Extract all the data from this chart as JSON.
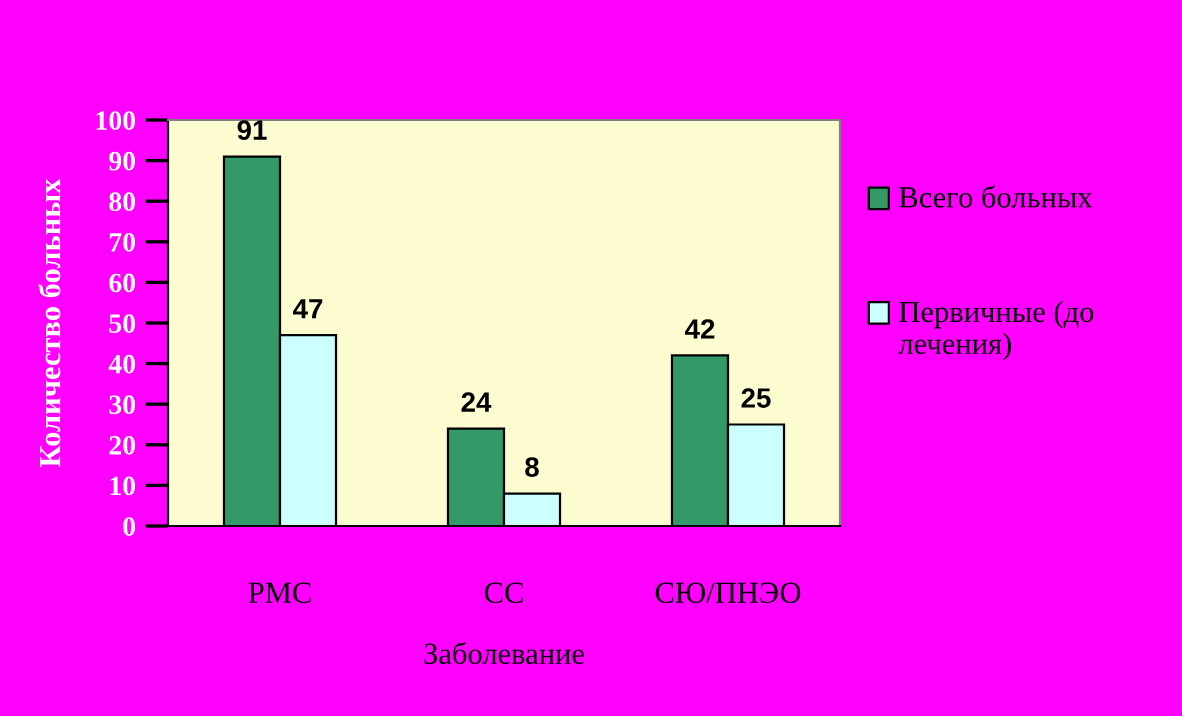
{
  "chart_data": {
    "type": "bar",
    "xlabel": "Заболевание",
    "ylabel": "Количество больных",
    "categories": [
      "РМС",
      "СС",
      "СЮ/ПНЭО"
    ],
    "series": [
      {
        "name": "Всего больных",
        "color": "#339966",
        "values": [
          91,
          24,
          42
        ]
      },
      {
        "name": "Первичные (до лечения)",
        "color": "#ccffff",
        "values": [
          47,
          8,
          25
        ]
      }
    ],
    "ylim": [
      0,
      100
    ],
    "yticks": [
      0,
      10,
      20,
      30,
      40,
      50,
      60,
      70,
      80,
      90,
      100
    ],
    "data_labels": true,
    "grid": false,
    "legend": "right"
  }
}
